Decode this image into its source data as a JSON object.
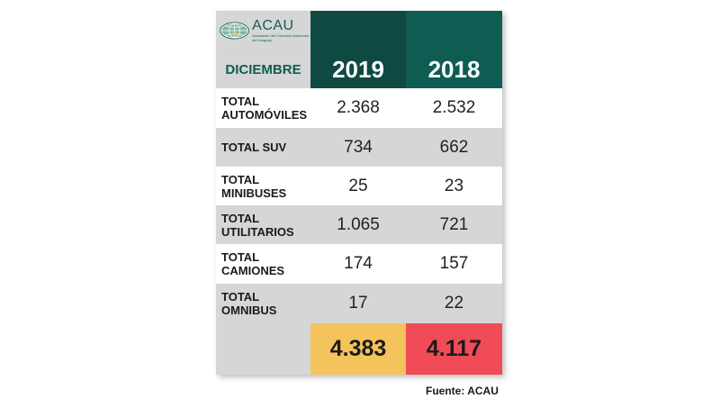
{
  "logo": {
    "name": "ACAU",
    "subtitle": "Asociación del Comercio Automotor del Uruguay"
  },
  "header": {
    "month": "DICIEMBRE",
    "year_a": "2019",
    "year_b": "2018"
  },
  "rows": [
    {
      "line1": "TOTAL",
      "line2": "AUTOMÓVILES",
      "a": "2.368",
      "b": "2.532"
    },
    {
      "line1": "TOTAL SUV",
      "line2": "",
      "a": "734",
      "b": "662"
    },
    {
      "line1": "TOTAL",
      "line2": "MINIBUSES",
      "a": "25",
      "b": "23"
    },
    {
      "line1": "TOTAL",
      "line2": "UTILITARIOS",
      "a": "1.065",
      "b": "721"
    },
    {
      "line1": "TOTAL",
      "line2": "CAMIONES",
      "a": "174",
      "b": "157"
    },
    {
      "line1": "TOTAL",
      "line2": "OMNIBUS",
      "a": "17",
      "b": "22"
    }
  ],
  "totals": {
    "a": "4.383",
    "b": "4.117"
  },
  "source": "Fuente: ACAU",
  "colors": {
    "dark_teal": "#0f4a42",
    "teal": "#0f5c52",
    "grey": "#d6d6d6",
    "yellow": "#f5c35c",
    "red": "#f04b57"
  },
  "chart_data": {
    "type": "table",
    "title": "",
    "columns": [
      "DICIEMBRE",
      "2019",
      "2018"
    ],
    "rows": [
      [
        "TOTAL AUTOMÓVILES",
        2368,
        2532
      ],
      [
        "TOTAL SUV",
        734,
        662
      ],
      [
        "TOTAL MINIBUSES",
        25,
        23
      ],
      [
        "TOTAL UTILITARIOS",
        1065,
        721
      ],
      [
        "TOTAL CAMIONES",
        174,
        157
      ],
      [
        "TOTAL OMNIBUS",
        17,
        22
      ]
    ],
    "totals": [
      4383,
      4117
    ]
  }
}
